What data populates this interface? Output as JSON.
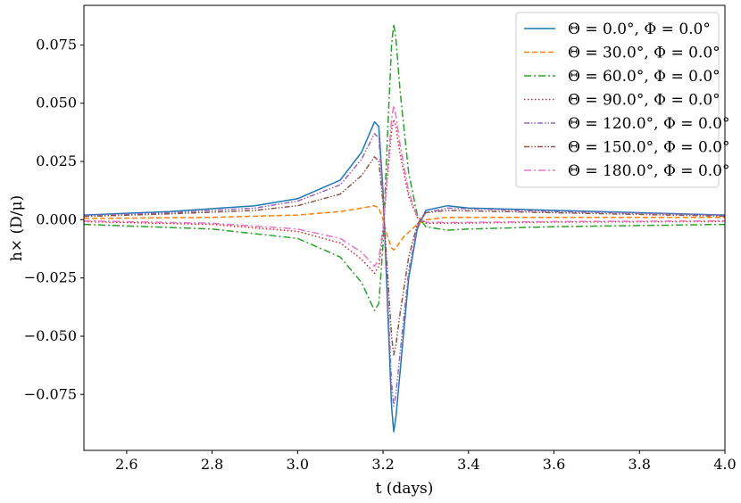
{
  "chart_data": {
    "type": "line",
    "title": "",
    "xlabel": "t (days)",
    "ylabel": "h× (D/μ)",
    "xlim": [
      2.5,
      4.0
    ],
    "ylim": [
      -0.099,
      0.092
    ],
    "xticks": [
      2.6,
      2.8,
      3.0,
      3.2,
      3.4,
      3.6,
      3.8,
      4.0
    ],
    "xtick_labels": [
      "2.6",
      "2.8",
      "3.0",
      "3.2",
      "3.4",
      "3.6",
      "3.8",
      "4.0"
    ],
    "yticks": [
      -0.075,
      -0.05,
      -0.025,
      0.0,
      0.025,
      0.05,
      0.075
    ],
    "ytick_labels": [
      "−0.075",
      "−0.050",
      "−0.025",
      "0.000",
      "0.025",
      "0.050",
      "0.075"
    ],
    "grid": false,
    "legend_position": "top-right",
    "series": [
      {
        "name": "Θ = 0.0°,  Φ = 0.0°",
        "color": "#1f77b4",
        "dash": "solid",
        "x": [
          2.5,
          2.7,
          2.9,
          3.0,
          3.1,
          3.15,
          3.18,
          3.19,
          3.2,
          3.21,
          3.22,
          3.225,
          3.23,
          3.24,
          3.26,
          3.28,
          3.3,
          3.35,
          3.4,
          3.6,
          3.8,
          4.0
        ],
        "y": [
          0.002,
          0.0035,
          0.006,
          0.009,
          0.017,
          0.029,
          0.042,
          0.04,
          0.012,
          -0.035,
          -0.08,
          -0.091,
          -0.085,
          -0.065,
          -0.025,
          -0.004,
          0.004,
          0.006,
          0.005,
          0.004,
          0.003,
          0.002
        ]
      },
      {
        "name": "Θ = 30.0°,  Φ = 0.0°",
        "color": "#ff7f0e",
        "dash": "dashed",
        "x": [
          2.5,
          2.8,
          3.0,
          3.1,
          3.15,
          3.18,
          3.19,
          3.2,
          3.21,
          3.22,
          3.225,
          3.23,
          3.25,
          3.28,
          3.3,
          3.35,
          3.5,
          4.0
        ],
        "y": [
          0.0005,
          0.001,
          0.002,
          0.0035,
          0.005,
          0.006,
          0.005,
          0.0,
          -0.007,
          -0.012,
          -0.013,
          -0.012,
          -0.007,
          -0.002,
          0.0,
          0.001,
          0.001,
          0.001
        ]
      },
      {
        "name": "Θ = 60.0°,  Φ = 0.0°",
        "color": "#2ca02c",
        "dash": "dashdot",
        "x": [
          2.5,
          2.8,
          3.0,
          3.1,
          3.15,
          3.18,
          3.19,
          3.2,
          3.21,
          3.22,
          3.225,
          3.23,
          3.24,
          3.26,
          3.28,
          3.3,
          3.35,
          3.4,
          3.6,
          4.0
        ],
        "y": [
          -0.002,
          -0.004,
          -0.008,
          -0.016,
          -0.027,
          -0.039,
          -0.036,
          -0.01,
          0.035,
          0.075,
          0.084,
          0.078,
          0.055,
          0.02,
          0.002,
          -0.003,
          -0.0045,
          -0.004,
          -0.003,
          -0.002
        ]
      },
      {
        "name": "Θ = 90.0°,  Φ = 0.0°",
        "color": "#d62728",
        "dash": "dotted",
        "x": [
          2.5,
          2.8,
          3.0,
          3.1,
          3.15,
          3.18,
          3.19,
          3.2,
          3.21,
          3.22,
          3.225,
          3.23,
          3.24,
          3.26,
          3.28,
          3.3,
          3.35,
          3.6,
          4.0
        ],
        "y": [
          -0.0008,
          -0.002,
          -0.005,
          -0.01,
          -0.017,
          -0.023,
          -0.02,
          -0.005,
          0.018,
          0.038,
          0.043,
          0.04,
          0.028,
          0.01,
          0.001,
          -0.0015,
          -0.0015,
          -0.001,
          -0.0008
        ]
      },
      {
        "name": "Θ = 120.0°,  Φ = 0.0°",
        "color": "#9467bd",
        "dash": "dashdotdot",
        "x": [
          2.5,
          2.7,
          2.9,
          3.0,
          3.1,
          3.15,
          3.18,
          3.19,
          3.2,
          3.21,
          3.22,
          3.225,
          3.23,
          3.24,
          3.26,
          3.28,
          3.3,
          3.35,
          3.6,
          4.0
        ],
        "y": [
          0.0018,
          0.003,
          0.005,
          0.008,
          0.015,
          0.026,
          0.037,
          0.035,
          0.01,
          -0.03,
          -0.07,
          -0.08,
          -0.075,
          -0.057,
          -0.022,
          -0.003,
          0.003,
          0.005,
          0.0035,
          0.002
        ]
      },
      {
        "name": "Θ = 150.0°,  Φ = 0.0°",
        "color": "#8c564b",
        "dash": "dashdotdot",
        "x": [
          2.5,
          2.7,
          2.9,
          3.0,
          3.1,
          3.15,
          3.18,
          3.19,
          3.2,
          3.21,
          3.22,
          3.225,
          3.23,
          3.24,
          3.26,
          3.28,
          3.3,
          3.35,
          3.6,
          4.0
        ],
        "y": [
          0.0014,
          0.0025,
          0.004,
          0.006,
          0.011,
          0.019,
          0.027,
          0.025,
          0.007,
          -0.022,
          -0.05,
          -0.058,
          -0.054,
          -0.04,
          -0.016,
          -0.002,
          0.003,
          0.004,
          0.003,
          0.0015
        ]
      },
      {
        "name": "Θ = 180.0°,  Φ = 0.0°",
        "color": "#e377c2",
        "dash": "dashdot",
        "x": [
          2.5,
          2.8,
          3.0,
          3.1,
          3.15,
          3.18,
          3.19,
          3.2,
          3.21,
          3.22,
          3.225,
          3.23,
          3.24,
          3.26,
          3.28,
          3.3,
          3.35,
          3.6,
          4.0
        ],
        "y": [
          -0.0005,
          -0.0015,
          -0.004,
          -0.008,
          -0.014,
          -0.02,
          -0.017,
          -0.003,
          0.02,
          0.043,
          0.049,
          0.045,
          0.032,
          0.012,
          0.001,
          -0.001,
          -0.0012,
          -0.0008,
          -0.0005
        ]
      }
    ]
  }
}
